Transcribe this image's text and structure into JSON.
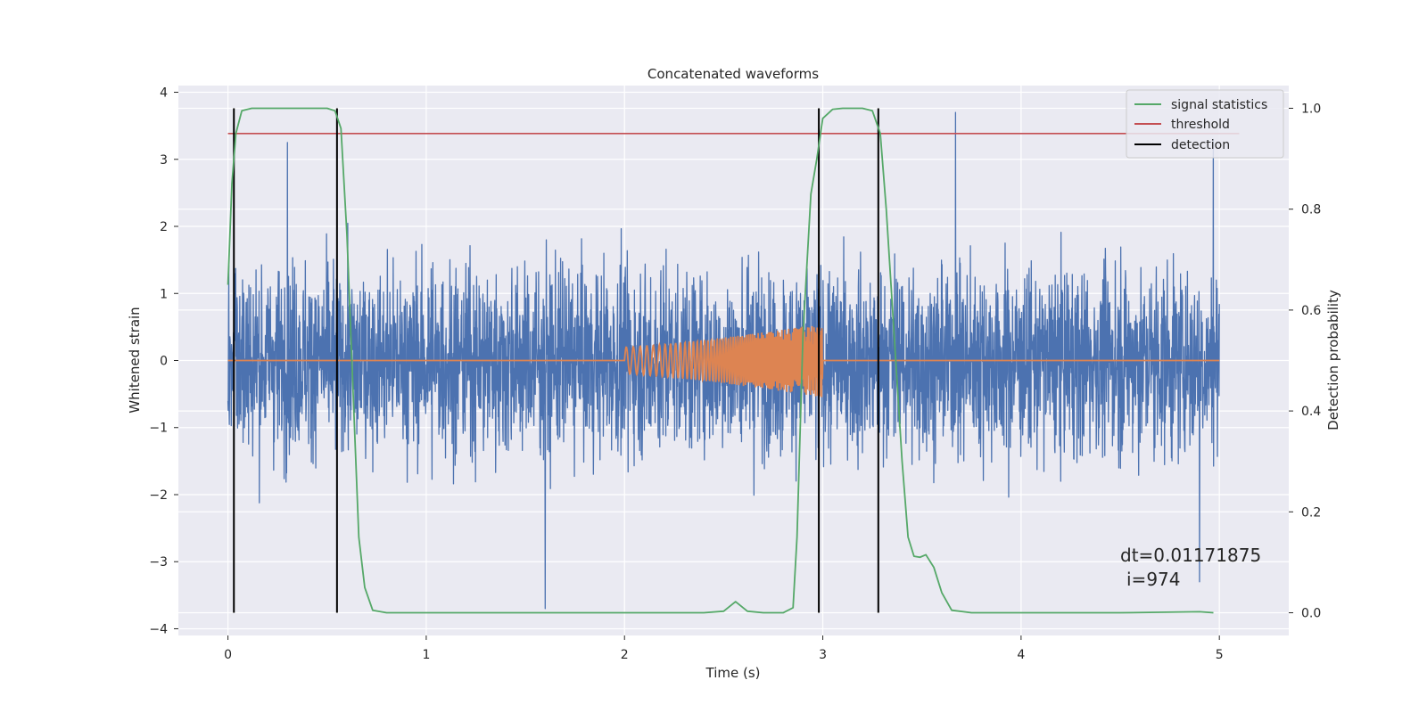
{
  "chart_data": {
    "type": "line",
    "title": "Concatenated waveforms",
    "xlabel": "Time (s)",
    "ylabel": "Whitened strain",
    "y2label": "Detection probability",
    "xlim": [
      -0.25,
      5.35
    ],
    "ylim": [
      -4.1,
      4.1
    ],
    "y2lim": [
      -0.045,
      1.045
    ],
    "x_ticks": [
      0,
      1,
      2,
      3,
      4,
      5
    ],
    "y_ticks": [
      -4,
      -3,
      -2,
      -1,
      0,
      1,
      2,
      3,
      4
    ],
    "y2_ticks": [
      0.0,
      0.2,
      0.4,
      0.6,
      0.8,
      1.0
    ],
    "grid": true,
    "legend_position": "top-right",
    "colors": {
      "strain": "#4c72b0",
      "injection": "#dd8452",
      "signal_statistics": "#55a868",
      "threshold": "#c44e52",
      "detection": "#000000",
      "background": "#eaeaf2",
      "grid": "#ffffff"
    },
    "series": [
      {
        "name": "",
        "key": "strain",
        "axis": "left",
        "description_values": "whitened noise, amplitude mostly within [-2.3, 2.3], spikes to about 3.7 and -3.7",
        "x_range": [
          0,
          5
        ],
        "typical_range": [
          -2.3,
          2.3
        ],
        "peaks": [
          [
            0.3,
            3.25
          ],
          [
            1.6,
            -3.7
          ],
          [
            3.67,
            3.7
          ],
          [
            4.97,
            3.3
          ],
          [
            4.9,
            -3.3
          ]
        ]
      },
      {
        "name": "",
        "key": "injection",
        "axis": "left",
        "x": [
          0,
          2.0,
          3.0,
          5.0
        ],
        "envelope": [
          0,
          0.2,
          0.55,
          0
        ],
        "chirp_start": 2.0,
        "chirp_end": 3.0
      },
      {
        "name": "signal statistics",
        "key": "signal_statistics",
        "axis": "right",
        "x": [
          0.0,
          0.02,
          0.04,
          0.07,
          0.12,
          0.2,
          0.5,
          0.54,
          0.57,
          0.6,
          0.63,
          0.66,
          0.69,
          0.73,
          0.8,
          1.5,
          2.4,
          2.5,
          2.56,
          2.62,
          2.7,
          2.8,
          2.85,
          2.87,
          2.9,
          2.94,
          2.97,
          3.0,
          3.05,
          3.1,
          3.2,
          3.25,
          3.29,
          3.32,
          3.36,
          3.4,
          3.43,
          3.46,
          3.49,
          3.52,
          3.56,
          3.6,
          3.65,
          3.75,
          4.5,
          4.9,
          4.97
        ],
        "y": [
          0.65,
          0.85,
          0.95,
          0.995,
          1.0,
          1.0,
          1.0,
          0.995,
          0.96,
          0.75,
          0.45,
          0.15,
          0.05,
          0.005,
          0.0,
          0.0,
          0.0,
          0.003,
          0.022,
          0.003,
          0.0,
          0.0,
          0.01,
          0.15,
          0.55,
          0.83,
          0.9,
          0.98,
          0.998,
          1.0,
          1.0,
          0.995,
          0.95,
          0.8,
          0.55,
          0.3,
          0.15,
          0.112,
          0.11,
          0.115,
          0.09,
          0.04,
          0.005,
          0.0,
          0.0,
          0.002,
          0.0
        ]
      },
      {
        "name": "threshold",
        "key": "threshold",
        "axis": "right",
        "x": [
          0,
          5.1
        ],
        "y": [
          0.95,
          0.95
        ]
      },
      {
        "name": "detection",
        "key": "detection",
        "axis": "right",
        "x_positions": [
          0.03,
          0.55,
          2.98,
          3.28
        ],
        "y_range": [
          0.0,
          1.0
        ]
      }
    ],
    "annotations": [
      {
        "text": "dt=0.01171875",
        "x": 4.5,
        "y": -2.85
      },
      {
        "text": "i=974",
        "x": 4.5,
        "y": -3.2
      }
    ]
  }
}
